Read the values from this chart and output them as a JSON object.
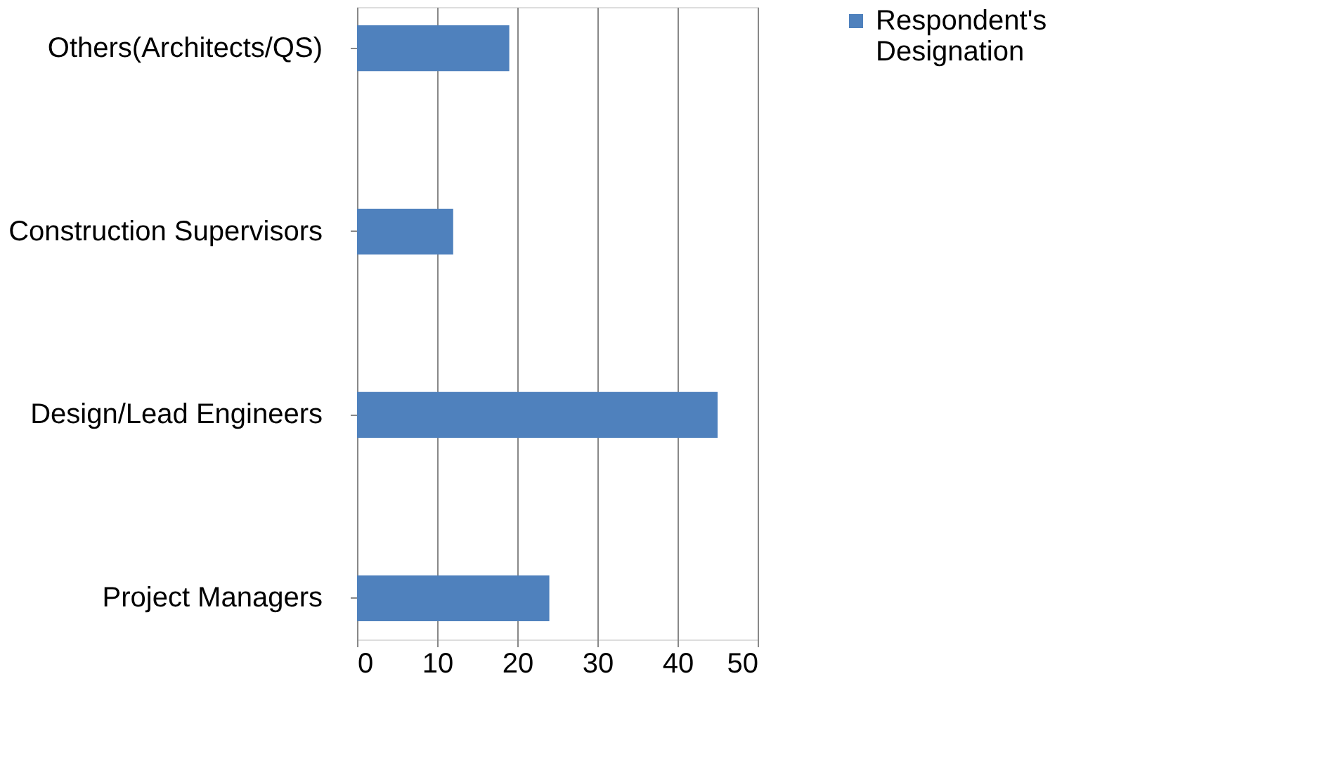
{
  "chart_data": {
    "type": "bar",
    "orientation": "horizontal",
    "categories": [
      "Others(Architects/QS)",
      "Construction Supervisors",
      "Design/Lead Engineers",
      "Project Managers"
    ],
    "series": [
      {
        "name": "Respondent's Designation",
        "color": "#4f81bd",
        "values": [
          19,
          12,
          45,
          24
        ]
      }
    ],
    "xlim": [
      0,
      50
    ],
    "xticks": [
      0,
      10,
      20,
      30,
      40,
      50
    ],
    "grid": "x",
    "legend": "right"
  }
}
